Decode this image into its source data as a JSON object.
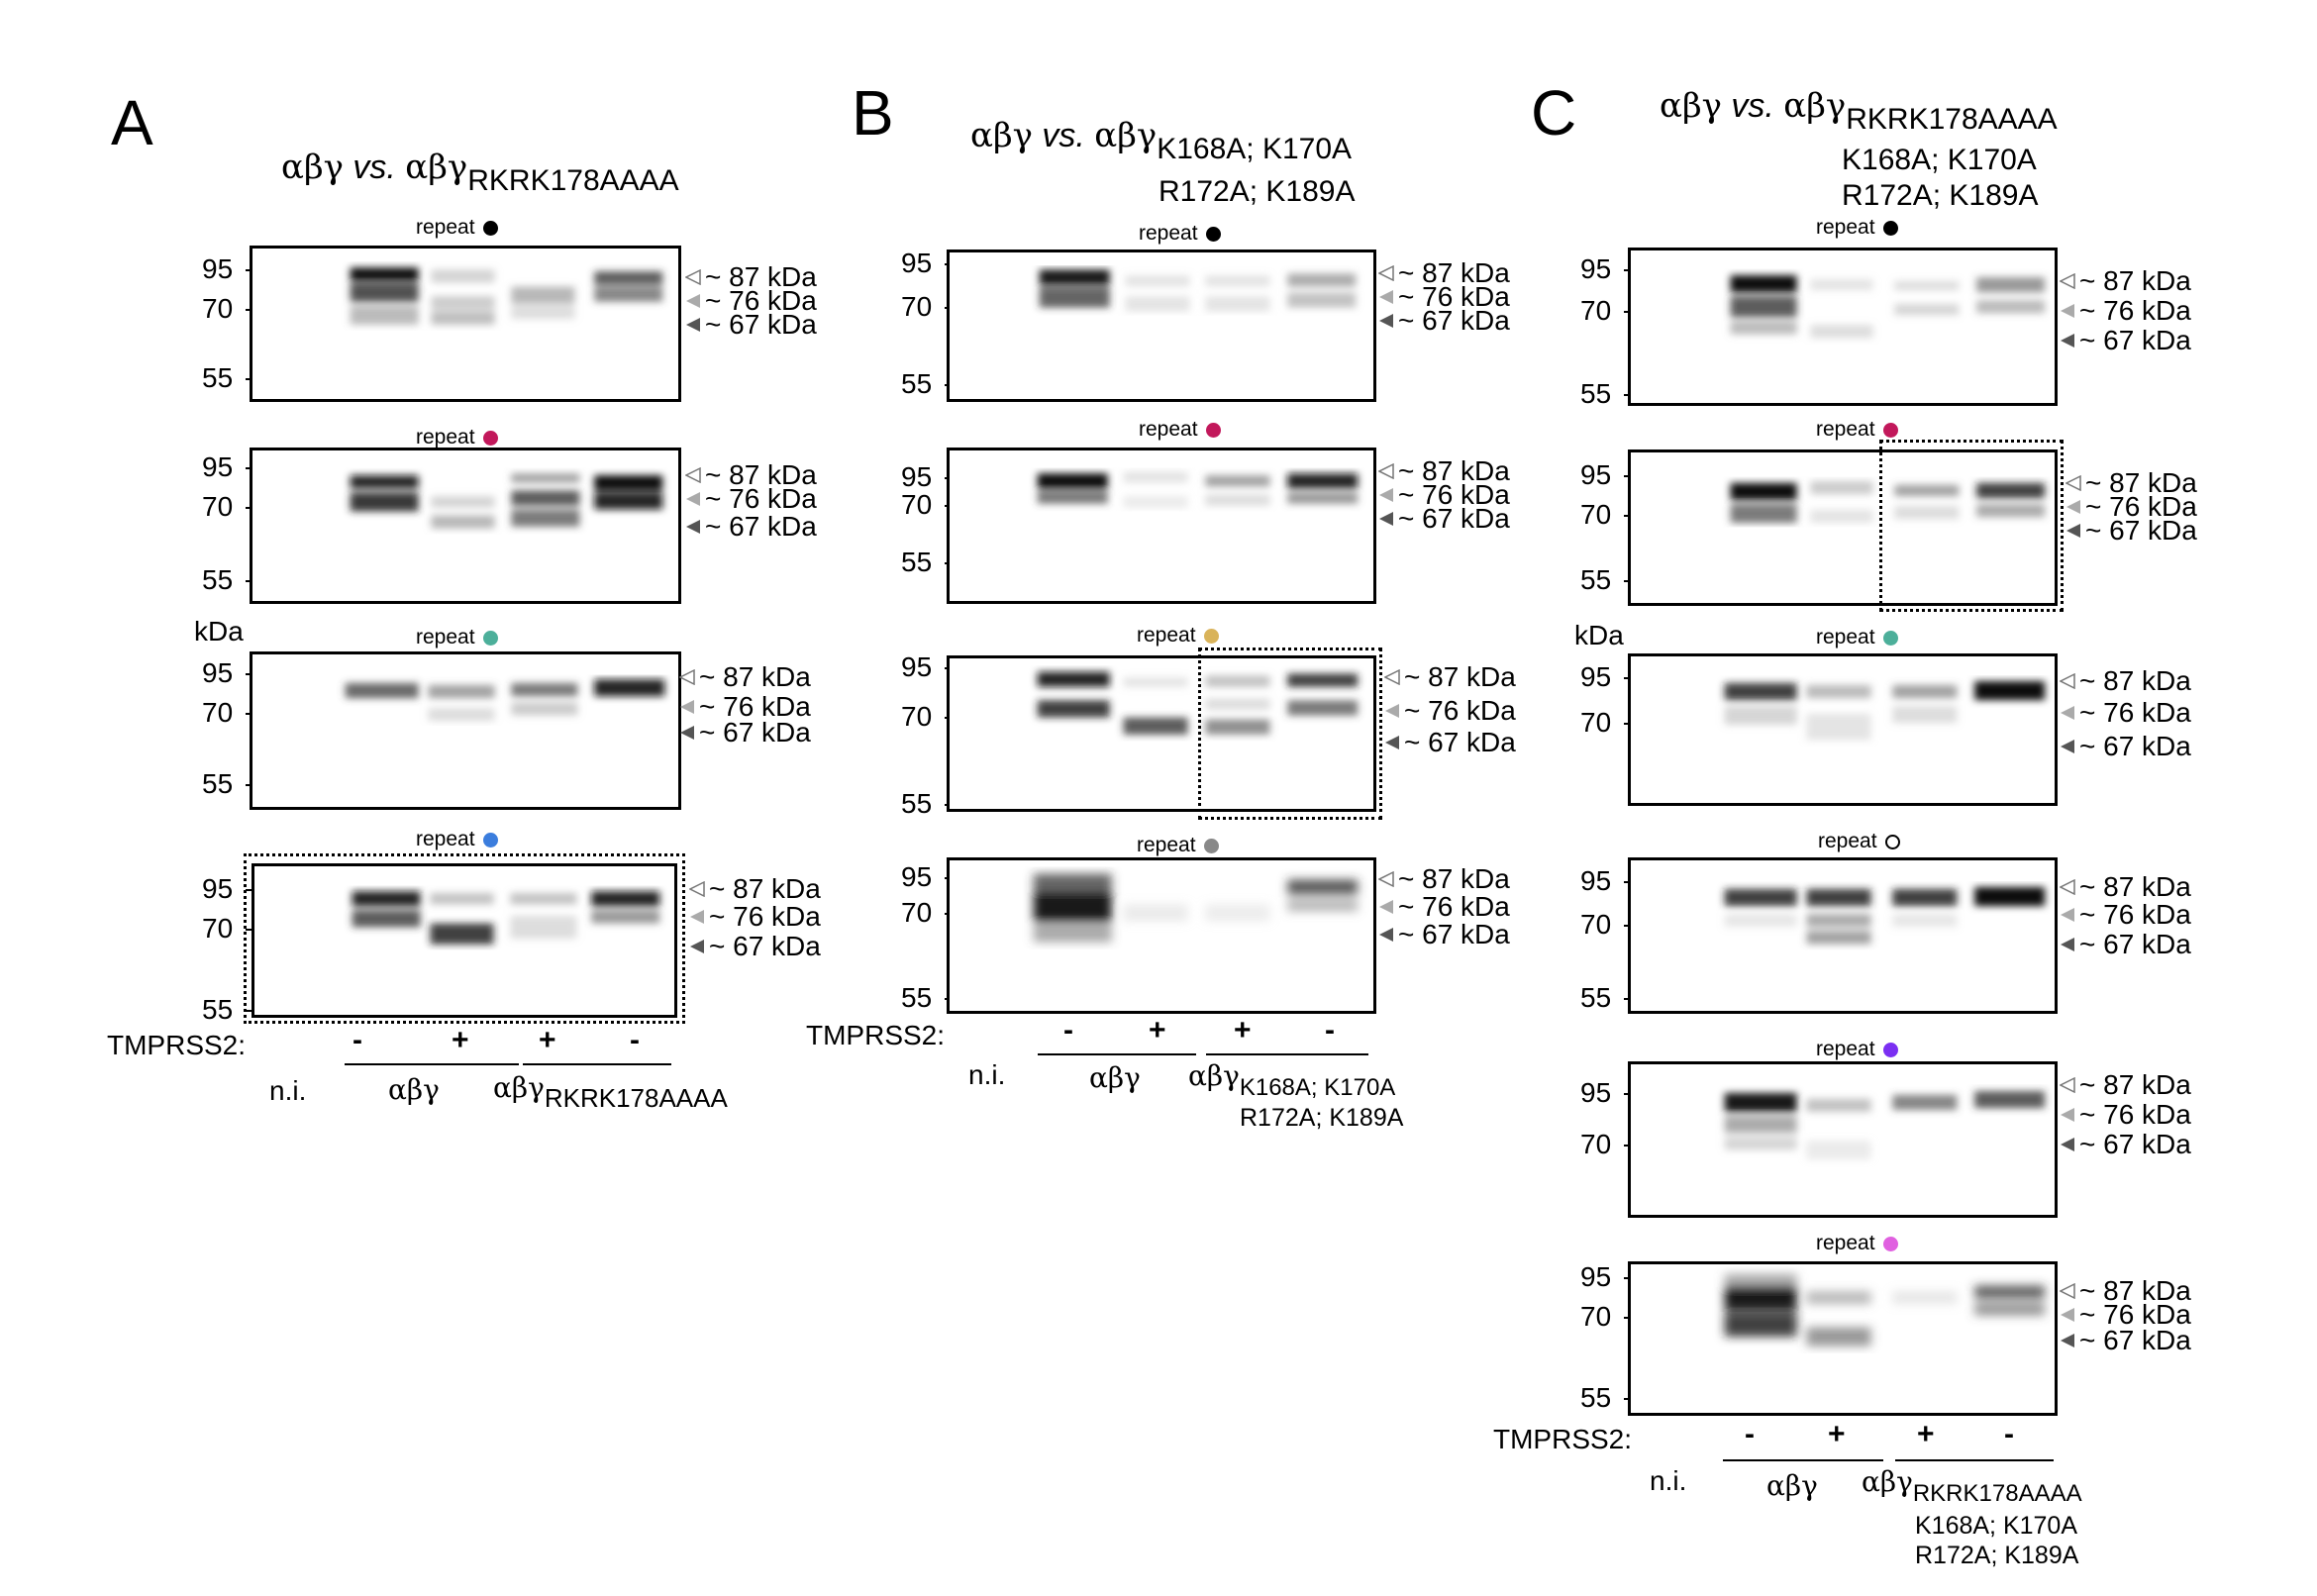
{
  "colors": {
    "black": "#000000",
    "crimson": "#c2185b",
    "teal": "#4caf9a",
    "blue": "#3b7ddd",
    "gold": "#d9b35a",
    "gray": "#888888",
    "purple": "#7b2ff2",
    "pink": "#e060e0"
  },
  "panelA": {
    "letter": "A",
    "title_main": "αβγ",
    "title_vs": "vs.",
    "title_b": "αβγ",
    "title_sub": "RKRK178AAAA",
    "repeat": "repeat",
    "kda": "kDa",
    "mw": [
      "95",
      "70",
      "55"
    ],
    "bands": [
      "~ 87 kDa",
      "~ 76 kDa",
      "~ 67 kDa"
    ],
    "tmprss2": "TMPRSS2:",
    "signs": [
      "-",
      "+",
      "+",
      "-"
    ],
    "ni": "n.i.",
    "g1": "αβγ",
    "g2": "αβγ",
    "g2_sub": "RKRK178AAAA"
  },
  "panelB": {
    "letter": "B",
    "title_main": "αβγ",
    "title_vs": "vs.",
    "title_b": "αβγ",
    "title_sub": "K168A; K170A",
    "title_line2": "R172A; K189A",
    "repeat": "repeat",
    "mw": [
      "95",
      "70",
      "55"
    ],
    "bands": [
      "~ 87 kDa",
      "~ 76 kDa",
      "~ 67 kDa"
    ],
    "tmprss2": "TMPRSS2:",
    "signs": [
      "-",
      "+",
      "+",
      "-"
    ],
    "ni": "n.i.",
    "g1": "αβγ",
    "g2": "αβγ",
    "g2_sub": "K168A; K170A",
    "g2_line2": "R172A; K189A"
  },
  "panelC": {
    "letter": "C",
    "title_main": "αβγ",
    "title_vs": "vs.",
    "title_b": "αβγ",
    "title_sub": "RKRK178AAAA",
    "title_line2": "K168A; K170A",
    "title_line3": "R172A; K189A",
    "repeat": "repeat",
    "kda": "kDa",
    "mw": [
      "95",
      "70",
      "55"
    ],
    "bands": [
      "~ 87 kDa",
      "~ 76 kDa",
      "~ 67 kDa"
    ],
    "tmprss2": "TMPRSS2:",
    "signs": [
      "-",
      "+",
      "+",
      "-"
    ],
    "ni": "n.i.",
    "g1": "αβγ",
    "g2": "αβγ",
    "g2_sub": "RKRK178AAAA",
    "g2_line2": "K168A; K170A",
    "g2_line3": "R172A; K189A"
  }
}
